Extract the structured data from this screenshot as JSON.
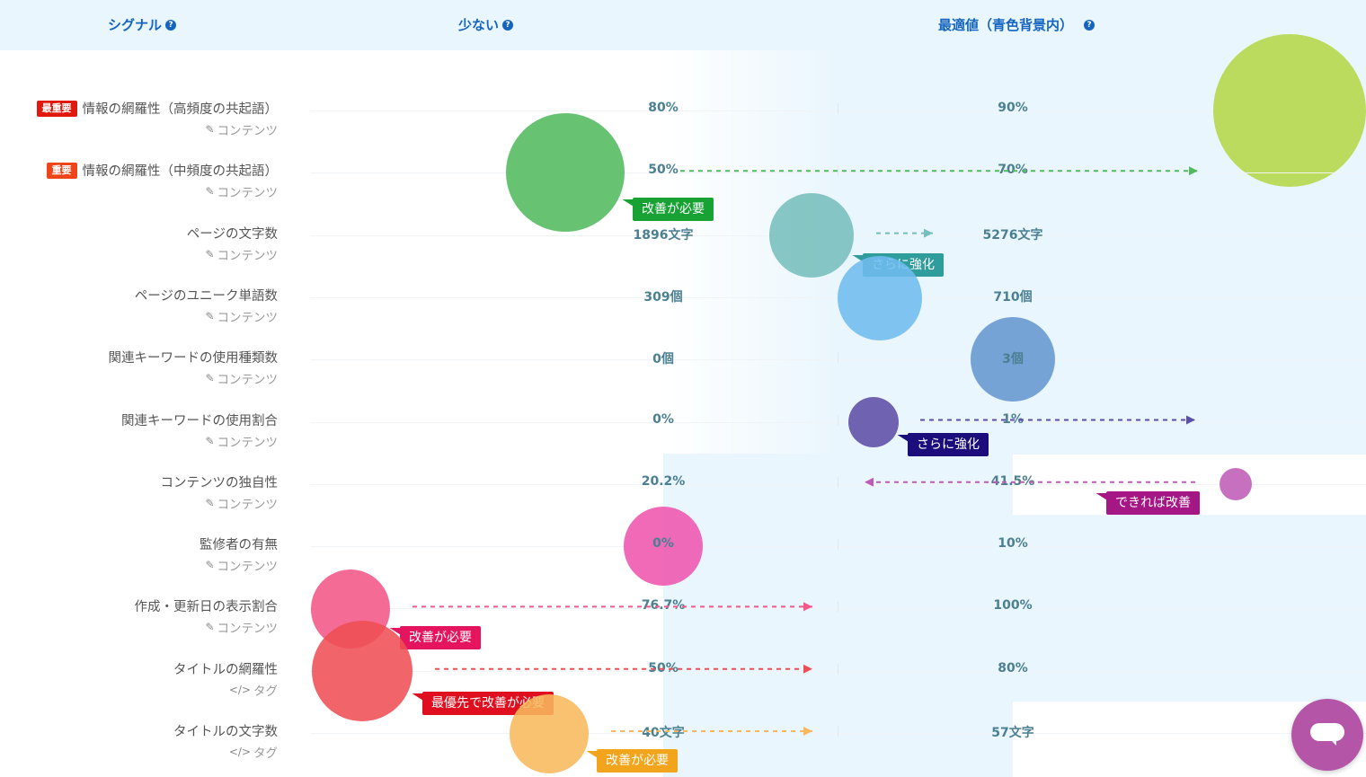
{
  "header": {
    "signal": "シグナル",
    "low": "少ない",
    "optimal": "最適値（青色背景内）",
    "help_icon": "?"
  },
  "colors": {
    "header_bg": "#e9f6fd",
    "header_text": "#1565c0",
    "value_text": "#4b7f92"
  },
  "chart_data": {
    "type": "scatter",
    "columns": [
      "少ない",
      "最適値（青色背景内）"
    ],
    "rows": [
      {
        "label": "情報の網羅性（高頻度の共起語）",
        "badge": "最重要",
        "badge_color": "#e0190c",
        "category": "コンテンツ",
        "category_icon": "edit-icon",
        "low": "80%",
        "optimal": "90%",
        "bubble_color": "#b4d748",
        "callout": "",
        "callout_color": ""
      },
      {
        "label": "情報の網羅性（中頻度の共起語）",
        "badge": "重要",
        "badge_color": "#f0441a",
        "category": "コンテンツ",
        "category_icon": "edit-icon",
        "low": "50%",
        "optimal": "70%",
        "bubble_color": "#52bb5f",
        "callout": "改善が必要",
        "callout_color": "#17a233"
      },
      {
        "label": "ページの文字数",
        "badge": "",
        "badge_color": "",
        "category": "コンテンツ",
        "category_icon": "edit-icon",
        "low": "1896文字",
        "optimal": "5276文字",
        "bubble_color": "#76bebd",
        "callout": "さらに強化",
        "callout_color": "#2e9d9b"
      },
      {
        "label": "ページのユニーク単語数",
        "badge": "",
        "badge_color": "",
        "category": "コンテンツ",
        "category_icon": "edit-icon",
        "low": "309個",
        "optimal": "710個",
        "bubble_color": "#6fbcef",
        "callout": "",
        "callout_color": ""
      },
      {
        "label": "関連キーワードの使用種類数",
        "badge": "",
        "badge_color": "",
        "category": "コンテンツ",
        "category_icon": "edit-icon",
        "low": "0個",
        "optimal": "3個",
        "bubble_color": "#6597cf",
        "callout": "",
        "callout_color": ""
      },
      {
        "label": "関連キーワードの使用割合",
        "badge": "",
        "badge_color": "",
        "category": "コンテンツ",
        "category_icon": "edit-icon",
        "low": "0%",
        "optimal": "1%",
        "bubble_color": "#5d4fa6",
        "callout": "さらに強化",
        "callout_color": "#1b0e7c"
      },
      {
        "label": "コンテンツの独自性",
        "badge": "",
        "badge_color": "",
        "category": "コンテンツ",
        "category_icon": "edit-icon",
        "low": "20.2%",
        "optimal": "41.5%",
        "bubble_color": "#c05cb7",
        "callout": "できれば改善",
        "callout_color": "#a41785"
      },
      {
        "label": "監修者の有無",
        "badge": "",
        "badge_color": "",
        "category": "コンテンツ",
        "category_icon": "edit-icon",
        "low": "0%",
        "optimal": "10%",
        "bubble_color": "#ee55ad",
        "callout": "",
        "callout_color": ""
      },
      {
        "label": "作成・更新日の表示割合",
        "badge": "",
        "badge_color": "",
        "category": "コンテンツ",
        "category_icon": "edit-icon",
        "low": "76.7%",
        "optimal": "100%",
        "bubble_color": "#f35888",
        "callout": "改善が必要",
        "callout_color": "#e4155e"
      },
      {
        "label": "タイトルの網羅性",
        "badge": "",
        "badge_color": "",
        "category": "タグ",
        "category_icon": "code-icon",
        "low": "50%",
        "optimal": "80%",
        "bubble_color": "#ef4e54",
        "callout": "最優先で改善が必要",
        "callout_color": "#e00f1f"
      },
      {
        "label": "タイトルの文字数",
        "badge": "",
        "badge_color": "",
        "category": "タグ",
        "category_icon": "code-icon",
        "low": "40文字",
        "optimal": "57文字",
        "bubble_color": "#f7b95d",
        "callout": "改善が必要",
        "callout_color": "#f2a41c"
      }
    ]
  }
}
